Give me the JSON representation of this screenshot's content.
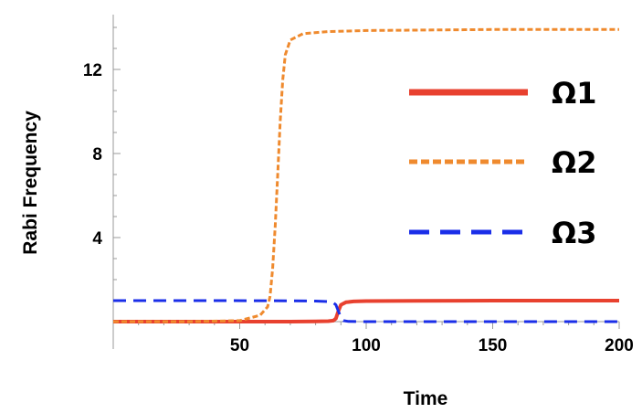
{
  "chart_data": {
    "type": "line",
    "xlabel": "Time",
    "ylabel": "Rabi Frequency",
    "xlim": [
      0,
      200
    ],
    "ylim": [
      0,
      14.5
    ],
    "x_ticks": [
      50,
      100,
      150,
      200
    ],
    "y_ticks": [
      4,
      8,
      12
    ],
    "grid": false,
    "legend_position": "right",
    "series": [
      {
        "name": "Ω1",
        "color": "#e8412f",
        "dash": "solid",
        "points": [
          [
            0,
            0
          ],
          [
            20,
            0
          ],
          [
            40,
            0
          ],
          [
            60,
            0
          ],
          [
            70,
            0
          ],
          [
            80,
            0.01
          ],
          [
            85,
            0.02
          ],
          [
            87,
            0.05
          ],
          [
            88,
            0.15
          ],
          [
            89,
            0.5
          ],
          [
            90,
            0.8
          ],
          [
            92,
            0.92
          ],
          [
            95,
            0.96
          ],
          [
            100,
            0.98
          ],
          [
            120,
            0.99
          ],
          [
            150,
            1.0
          ],
          [
            200,
            1.0
          ]
        ]
      },
      {
        "name": "Ω2",
        "color": "#ef8a2e",
        "dash": "short",
        "points": [
          [
            0,
            0
          ],
          [
            30,
            0
          ],
          [
            50,
            0.05
          ],
          [
            58,
            0.3
          ],
          [
            61,
            0.7
          ],
          [
            62,
            1.2
          ],
          [
            63,
            2.5
          ],
          [
            64,
            4.5
          ],
          [
            65,
            7
          ],
          [
            66,
            9.5
          ],
          [
            67,
            11.5
          ],
          [
            68,
            12.7
          ],
          [
            70,
            13.4
          ],
          [
            75,
            13.7
          ],
          [
            85,
            13.8
          ],
          [
            100,
            13.85
          ],
          [
            150,
            13.9
          ],
          [
            200,
            13.9
          ]
        ]
      },
      {
        "name": "Ω3",
        "color": "#1a2ee8",
        "dash": "long",
        "points": [
          [
            0,
            1
          ],
          [
            40,
            1
          ],
          [
            70,
            0.99
          ],
          [
            80,
            0.98
          ],
          [
            85,
            0.95
          ],
          [
            87,
            0.9
          ],
          [
            88,
            0.8
          ],
          [
            89,
            0.5
          ],
          [
            90,
            0.2
          ],
          [
            91,
            0.05
          ],
          [
            93,
            0.01
          ],
          [
            100,
            0
          ],
          [
            150,
            0
          ],
          [
            200,
            0
          ]
        ]
      }
    ]
  }
}
